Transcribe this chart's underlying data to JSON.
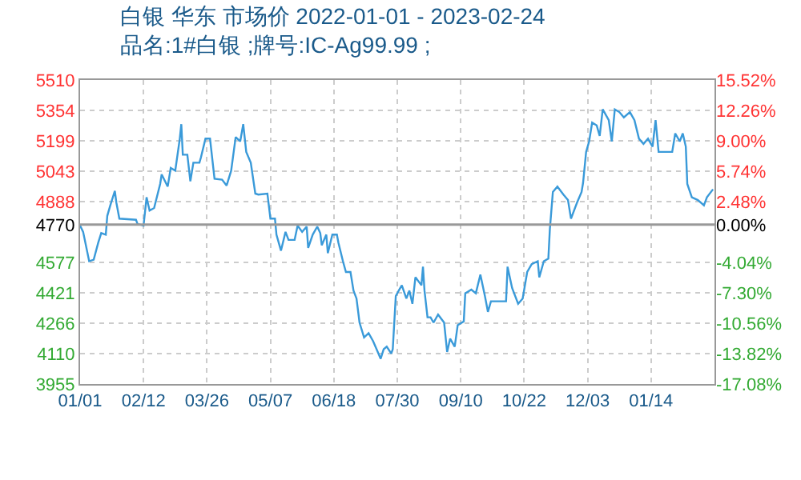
{
  "chart_data": {
    "type": "line",
    "title": "白银 华东 市场价 2022-01-01 - 2023-02-24",
    "subtitle": "品名:1#白银 ;牌号:IC-Ag99.99 ;",
    "x": [
      "2022-01-01",
      "2022-01-03",
      "2022-01-07",
      "2022-01-10",
      "2022-01-13",
      "2022-01-15",
      "2022-01-18",
      "2022-01-19",
      "2022-01-21",
      "2022-01-24",
      "2022-01-25",
      "2022-01-27",
      "2022-02-07",
      "2022-02-08",
      "2022-02-12",
      "2022-02-14",
      "2022-02-16",
      "2022-02-19",
      "2022-02-23",
      "2022-02-24",
      "2022-02-28",
      "2022-03-02",
      "2022-03-05",
      "2022-03-08",
      "2022-03-09",
      "2022-03-10",
      "2022-03-13",
      "2022-03-15",
      "2022-03-17",
      "2022-03-21",
      "2022-03-22",
      "2022-03-25",
      "2022-03-28",
      "2022-03-31",
      "2022-04-05",
      "2022-04-08",
      "2022-04-11",
      "2022-04-14",
      "2022-04-17",
      "2022-04-19",
      "2022-04-21",
      "2022-04-24",
      "2022-04-27",
      "2022-04-29",
      "2022-05-05",
      "2022-05-07",
      "2022-05-10",
      "2022-05-11",
      "2022-05-14",
      "2022-05-17",
      "2022-05-19",
      "2022-05-23",
      "2022-05-25",
      "2022-05-28",
      "2022-05-31",
      "2022-06-01",
      "2022-06-04",
      "2022-06-07",
      "2022-06-09",
      "2022-06-10",
      "2022-06-13",
      "2022-06-14",
      "2022-06-17",
      "2022-06-20",
      "2022-06-21",
      "2022-06-24",
      "2022-06-26",
      "2022-06-29",
      "2022-07-01",
      "2022-07-03",
      "2022-07-05",
      "2022-07-08",
      "2022-07-11",
      "2022-07-14",
      "2022-07-16",
      "2022-07-19",
      "2022-07-21",
      "2022-07-23",
      "2022-07-26",
      "2022-07-27",
      "2022-07-29",
      "2022-07-31",
      "2022-08-02",
      "2022-08-05",
      "2022-08-07",
      "2022-08-09",
      "2022-08-11",
      "2022-08-15",
      "2022-08-16",
      "2022-08-17",
      "2022-08-19",
      "2022-08-21",
      "2022-08-23",
      "2022-08-26",
      "2022-08-30",
      "2022-09-01",
      "2022-09-03",
      "2022-09-06",
      "2022-09-08",
      "2022-09-12",
      "2022-09-13",
      "2022-09-17",
      "2022-09-20",
      "2022-09-23",
      "2022-09-26",
      "2022-09-28",
      "2022-09-30",
      "2022-10-10",
      "2022-10-11",
      "2022-10-14",
      "2022-10-18",
      "2022-10-21",
      "2022-10-24",
      "2022-10-27",
      "2022-10-31",
      "2022-11-01",
      "2022-11-04",
      "2022-11-07",
      "2022-11-08",
      "2022-11-10",
      "2022-11-13",
      "2022-11-17",
      "2022-11-20",
      "2022-11-22",
      "2022-11-26",
      "2022-11-29",
      "2022-11-30",
      "2022-12-02",
      "2022-12-04",
      "2022-12-06",
      "2022-12-09",
      "2022-12-11",
      "2022-12-13",
      "2022-12-17",
      "2022-12-19",
      "2022-12-21",
      "2022-12-24",
      "2022-12-27",
      "2022-12-31",
      "2023-01-03",
      "2023-01-06",
      "2023-01-09",
      "2023-01-12",
      "2023-01-15",
      "2023-01-17",
      "2023-01-19",
      "2023-01-28",
      "2023-01-30",
      "2023-02-02",
      "2023-02-04",
      "2023-02-06",
      "2023-02-07",
      "2023-02-10",
      "2023-02-14",
      "2023-02-18",
      "2023-02-20",
      "2023-02-24"
    ],
    "series": [
      {
        "color": "#3a9ad9",
        "values": [
          4765,
          4733,
          4583,
          4591,
          4678,
          4727,
          4719,
          4815,
          4869,
          4943,
          4883,
          4801,
          4795,
          4774,
          4765,
          4910,
          4842,
          4855,
          4978,
          5027,
          4965,
          5060,
          5046,
          5210,
          5284,
          5128,
          5128,
          4992,
          5087,
          5087,
          5114,
          5210,
          5210,
          5005,
          5000,
          4970,
          5046,
          5218,
          5196,
          5284,
          5142,
          5087,
          4929,
          4924,
          4929,
          4801,
          4801,
          4719,
          4637,
          4733,
          4692,
          4692,
          4765,
          4733,
          4760,
          4651,
          4719,
          4760,
          4727,
          4665,
          4719,
          4624,
          4719,
          4719,
          4678,
          4583,
          4528,
          4528,
          4433,
          4392,
          4269,
          4193,
          4215,
          4174,
          4138,
          4084,
          4133,
          4146,
          4111,
          4133,
          4405,
          4433,
          4460,
          4392,
          4433,
          4365,
          4501,
          4460,
          4555,
          4433,
          4296,
          4296,
          4269,
          4310,
          4269,
          4119,
          4187,
          4146,
          4256,
          4275,
          4419,
          4438,
          4419,
          4515,
          4405,
          4324,
          4378,
          4378,
          4555,
          4446,
          4365,
          4392,
          4528,
          4568,
          4583,
          4501,
          4583,
          4596,
          4746,
          4937,
          4965,
          4924,
          4896,
          4801,
          4883,
          4937,
          4984,
          5142,
          5196,
          5292,
          5278,
          5224,
          5360,
          5305,
          5196,
          5360,
          5346,
          5319,
          5346,
          5305,
          5210,
          5183,
          5210,
          5169,
          5305,
          5142,
          5142,
          5237,
          5196,
          5237,
          5169,
          4978,
          4910,
          4896,
          4869,
          4910,
          4951
        ]
      }
    ],
    "xlim": [
      "2022-01-01",
      "2023-02-25"
    ],
    "xticks": [
      {
        "value": "2022-01-01",
        "label": "01/01"
      },
      {
        "value": "2022-02-12",
        "label": "02/12"
      },
      {
        "value": "2022-03-26",
        "label": "03/26"
      },
      {
        "value": "2022-05-07",
        "label": "05/07"
      },
      {
        "value": "2022-06-18",
        "label": "06/18"
      },
      {
        "value": "2022-07-30",
        "label": "07/30"
      },
      {
        "value": "2022-09-10",
        "label": "09/10"
      },
      {
        "value": "2022-10-22",
        "label": "10/22"
      },
      {
        "value": "2022-12-03",
        "label": "12/03"
      },
      {
        "value": "2023-01-14",
        "label": "01/14"
      }
    ],
    "ylim": [
      3955,
      5510
    ],
    "yticks": [
      3955,
      4110,
      4266,
      4421,
      4577,
      4770,
      4888,
      5043,
      5199,
      5354,
      5510
    ],
    "y2lim": [
      -17.08,
      15.52
    ],
    "y2ticks": [
      {
        "value": -17.08,
        "label": "-17.08%"
      },
      {
        "value": -13.82,
        "label": "-13.82%"
      },
      {
        "value": -10.56,
        "label": "-10.56%"
      },
      {
        "value": -7.3,
        "label": "-7.30%"
      },
      {
        "value": -4.04,
        "label": "-4.04%"
      },
      {
        "value": 0,
        "label": "0.00%"
      },
      {
        "value": 2.48,
        "label": "2.48%"
      },
      {
        "value": 5.74,
        "label": "5.74%"
      },
      {
        "value": 9,
        "label": "9.00%"
      },
      {
        "value": 12.26,
        "label": "12.26%"
      },
      {
        "value": 15.52,
        "label": "15.52%"
      }
    ],
    "ref_lines": [
      {
        "axis": "y",
        "value": 4770,
        "color": "#999999",
        "line_style": "solid"
      }
    ],
    "grid": true,
    "line_style": "solid",
    "marker": "none"
  }
}
